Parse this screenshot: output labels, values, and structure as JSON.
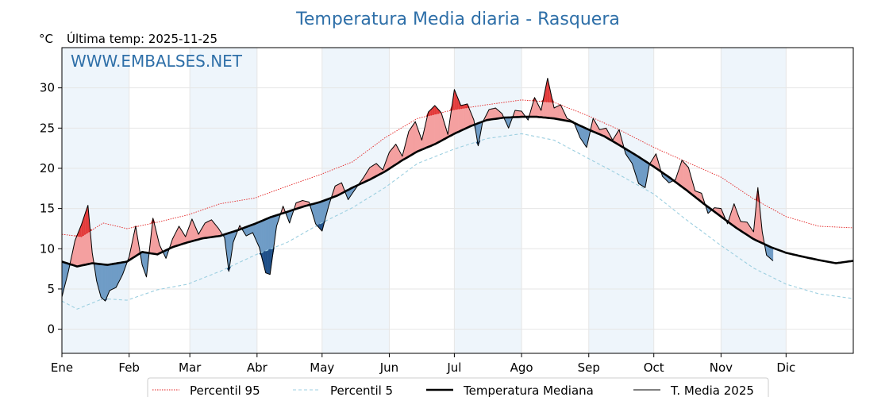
{
  "chart_data": {
    "type": "line",
    "title": "Temperatura Media diaria - Rasquera",
    "ylabel": "°C",
    "subtitle": "Última temp: 2025-11-25",
    "watermark": "WWW.EMBALSES.NET",
    "ylim": [
      -3,
      35
    ],
    "yticks": [
      0,
      5,
      10,
      15,
      20,
      25,
      30
    ],
    "xlim_days": [
      1,
      366
    ],
    "month_ticks": [
      {
        "label": "Ene",
        "day": 1
      },
      {
        "label": "Feb",
        "day": 32
      },
      {
        "label": "Mar",
        "day": 60
      },
      {
        "label": "Abr",
        "day": 91
      },
      {
        "label": "May",
        "day": 121
      },
      {
        "label": "Jun",
        "day": 152
      },
      {
        "label": "Jul",
        "day": 182
      },
      {
        "label": "Ago",
        "day": 213
      },
      {
        "label": "Sep",
        "day": 244
      },
      {
        "label": "Oct",
        "day": 274
      },
      {
        "label": "Nov",
        "day": 305
      },
      {
        "label": "Dic",
        "day": 335
      }
    ],
    "shaded_month_bands": [
      [
        1,
        32
      ],
      [
        60,
        91
      ],
      [
        121,
        152
      ],
      [
        182,
        213
      ],
      [
        244,
        274
      ],
      [
        305,
        335
      ]
    ],
    "last_day_2025": 329,
    "series": [
      {
        "name": "Percentil 95",
        "color": "#e32222",
        "style": "dotted",
        "points": [
          [
            1,
            11.8
          ],
          [
            10,
            11.5
          ],
          [
            20,
            13.2
          ],
          [
            31,
            12.5
          ],
          [
            45,
            13.3
          ],
          [
            59,
            14.2
          ],
          [
            74,
            15.6
          ],
          [
            90,
            16.3
          ],
          [
            105,
            17.8
          ],
          [
            120,
            19.2
          ],
          [
            135,
            20.8
          ],
          [
            150,
            23.8
          ],
          [
            165,
            26.2
          ],
          [
            182,
            27.3
          ],
          [
            197,
            27.9
          ],
          [
            213,
            28.5
          ],
          [
            228,
            28.2
          ],
          [
            244,
            26.5
          ],
          [
            258,
            24.8
          ],
          [
            274,
            22.6
          ],
          [
            289,
            20.8
          ],
          [
            305,
            18.9
          ],
          [
            320,
            16.2
          ],
          [
            335,
            14.0
          ],
          [
            350,
            12.8
          ],
          [
            366,
            12.6
          ]
        ]
      },
      {
        "name": "Percentil 5",
        "color": "#9ccfe0",
        "style": "dashed",
        "points": [
          [
            1,
            3.5
          ],
          [
            8,
            2.5
          ],
          [
            20,
            3.8
          ],
          [
            31,
            3.6
          ],
          [
            45,
            4.9
          ],
          [
            59,
            5.6
          ],
          [
            74,
            7.2
          ],
          [
            90,
            9.2
          ],
          [
            105,
            10.8
          ],
          [
            120,
            13.1
          ],
          [
            135,
            15.1
          ],
          [
            150,
            17.6
          ],
          [
            165,
            20.6
          ],
          [
            182,
            22.4
          ],
          [
            197,
            23.7
          ],
          [
            213,
            24.3
          ],
          [
            228,
            23.5
          ],
          [
            244,
            21.2
          ],
          [
            258,
            19.2
          ],
          [
            274,
            16.8
          ],
          [
            289,
            13.6
          ],
          [
            305,
            10.4
          ],
          [
            320,
            7.6
          ],
          [
            335,
            5.6
          ],
          [
            350,
            4.4
          ],
          [
            366,
            3.8
          ]
        ]
      },
      {
        "name": "Temperatura Mediana",
        "color": "#000000",
        "style": "thick",
        "points": [
          [
            1,
            8.4
          ],
          [
            8,
            7.8
          ],
          [
            15,
            8.2
          ],
          [
            22,
            8.0
          ],
          [
            31,
            8.4
          ],
          [
            38,
            9.6
          ],
          [
            45,
            9.3
          ],
          [
            52,
            10.2
          ],
          [
            59,
            10.8
          ],
          [
            66,
            11.3
          ],
          [
            74,
            11.6
          ],
          [
            82,
            12.3
          ],
          [
            90,
            13.1
          ],
          [
            97,
            13.9
          ],
          [
            105,
            14.6
          ],
          [
            113,
            15.3
          ],
          [
            120,
            15.8
          ],
          [
            128,
            16.6
          ],
          [
            135,
            17.6
          ],
          [
            143,
            18.6
          ],
          [
            150,
            19.6
          ],
          [
            158,
            21.0
          ],
          [
            165,
            22.1
          ],
          [
            173,
            23.0
          ],
          [
            182,
            24.3
          ],
          [
            190,
            25.3
          ],
          [
            197,
            26.0
          ],
          [
            205,
            26.3
          ],
          [
            213,
            26.4
          ],
          [
            220,
            26.4
          ],
          [
            228,
            26.2
          ],
          [
            236,
            25.8
          ],
          [
            244,
            24.8
          ],
          [
            251,
            24.0
          ],
          [
            258,
            22.9
          ],
          [
            266,
            21.6
          ],
          [
            274,
            20.2
          ],
          [
            281,
            18.9
          ],
          [
            289,
            17.3
          ],
          [
            297,
            15.6
          ],
          [
            305,
            14.0
          ],
          [
            312,
            12.6
          ],
          [
            320,
            11.2
          ],
          [
            328,
            10.2
          ],
          [
            335,
            9.5
          ],
          [
            343,
            9.0
          ],
          [
            350,
            8.6
          ],
          [
            358,
            8.2
          ],
          [
            366,
            8.5
          ]
        ]
      },
      {
        "name": "T. Media 2025",
        "color": "#000000",
        "style": "solid",
        "points": [
          [
            1,
            4.0
          ],
          [
            4,
            7.2
          ],
          [
            7,
            11.0
          ],
          [
            10,
            13.0
          ],
          [
            13,
            15.4
          ],
          [
            15,
            9.5
          ],
          [
            17,
            6.0
          ],
          [
            19,
            4.0
          ],
          [
            21,
            3.5
          ],
          [
            23,
            4.8
          ],
          [
            26,
            5.2
          ],
          [
            29,
            6.8
          ],
          [
            32,
            9.0
          ],
          [
            35,
            12.8
          ],
          [
            38,
            8.0
          ],
          [
            40,
            6.5
          ],
          [
            43,
            13.8
          ],
          [
            46,
            10.5
          ],
          [
            49,
            8.8
          ],
          [
            52,
            11.2
          ],
          [
            55,
            12.8
          ],
          [
            58,
            11.5
          ],
          [
            61,
            13.7
          ],
          [
            64,
            11.8
          ],
          [
            67,
            13.2
          ],
          [
            70,
            13.6
          ],
          [
            73,
            12.6
          ],
          [
            76,
            11.4
          ],
          [
            78,
            7.2
          ],
          [
            80,
            10.8
          ],
          [
            83,
            12.9
          ],
          [
            86,
            11.6
          ],
          [
            89,
            12.0
          ],
          [
            92,
            10.2
          ],
          [
            95,
            7.0
          ],
          [
            97,
            6.8
          ],
          [
            100,
            12.8
          ],
          [
            103,
            15.3
          ],
          [
            106,
            13.2
          ],
          [
            109,
            15.7
          ],
          [
            112,
            16.0
          ],
          [
            115,
            15.8
          ],
          [
            118,
            13.1
          ],
          [
            121,
            12.2
          ],
          [
            124,
            15.3
          ],
          [
            127,
            17.8
          ],
          [
            130,
            18.2
          ],
          [
            133,
            16.1
          ],
          [
            136,
            17.3
          ],
          [
            140,
            18.8
          ],
          [
            143,
            20.1
          ],
          [
            146,
            20.6
          ],
          [
            149,
            19.8
          ],
          [
            152,
            22.0
          ],
          [
            155,
            23.0
          ],
          [
            158,
            21.5
          ],
          [
            161,
            24.6
          ],
          [
            164,
            25.8
          ],
          [
            167,
            23.5
          ],
          [
            170,
            27.0
          ],
          [
            173,
            27.8
          ],
          [
            176,
            26.9
          ],
          [
            179,
            24.2
          ],
          [
            182,
            29.8
          ],
          [
            185,
            27.8
          ],
          [
            188,
            28.0
          ],
          [
            191,
            26.0
          ],
          [
            193,
            22.8
          ],
          [
            195,
            25.7
          ],
          [
            198,
            27.3
          ],
          [
            201,
            27.5
          ],
          [
            204,
            26.8
          ],
          [
            207,
            25.0
          ],
          [
            210,
            27.2
          ],
          [
            213,
            27.1
          ],
          [
            216,
            26.0
          ],
          [
            219,
            28.8
          ],
          [
            222,
            27.2
          ],
          [
            225,
            31.2
          ],
          [
            228,
            27.5
          ],
          [
            231,
            27.9
          ],
          [
            234,
            26.2
          ],
          [
            237,
            25.8
          ],
          [
            240,
            23.8
          ],
          [
            243,
            22.6
          ],
          [
            246,
            26.2
          ],
          [
            249,
            24.8
          ],
          [
            252,
            25.0
          ],
          [
            255,
            23.5
          ],
          [
            258,
            24.8
          ],
          [
            261,
            21.8
          ],
          [
            264,
            20.6
          ],
          [
            267,
            18.1
          ],
          [
            270,
            17.6
          ],
          [
            272,
            20.5
          ],
          [
            275,
            21.8
          ],
          [
            278,
            19.0
          ],
          [
            281,
            18.2
          ],
          [
            284,
            18.6
          ],
          [
            287,
            21.0
          ],
          [
            290,
            20.1
          ],
          [
            293,
            17.2
          ],
          [
            296,
            16.9
          ],
          [
            299,
            14.4
          ],
          [
            302,
            15.1
          ],
          [
            305,
            15.0
          ],
          [
            308,
            13.1
          ],
          [
            311,
            15.6
          ],
          [
            314,
            13.4
          ],
          [
            317,
            13.3
          ],
          [
            320,
            12.1
          ],
          [
            322,
            17.6
          ],
          [
            324,
            12.1
          ],
          [
            326,
            9.2
          ],
          [
            329,
            8.5
          ]
        ]
      }
    ],
    "legend": [
      {
        "label": "Percentil 95",
        "style": "dotted",
        "color": "#e32222"
      },
      {
        "label": "Percentil 5",
        "style": "dashed",
        "color": "#9ccfe0"
      },
      {
        "label": "Temperatura Mediana",
        "style": "thick",
        "color": "#000000"
      },
      {
        "label": "T. Media 2025",
        "style": "solid",
        "color": "#000000"
      }
    ],
    "colors": {
      "title": "#2e6fa8",
      "above_fill": "#f4a0a0",
      "above_p95_fill": "#e33b3b",
      "below_fill": "#6f9cc6",
      "below_p5_fill": "#1f4f88",
      "month_band": "#eef5fb",
      "grid": "#e6e6e6"
    }
  }
}
